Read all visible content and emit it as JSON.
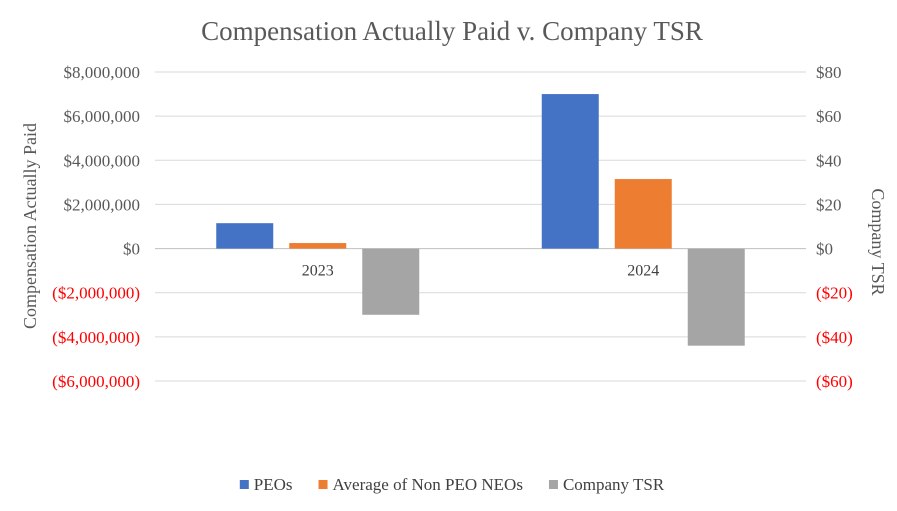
{
  "chart_data": {
    "type": "bar",
    "title": "Compensation Actually Paid v. Company TSR",
    "categories": [
      "2023",
      "2024"
    ],
    "series": [
      {
        "name": "PEOs",
        "axis": "left",
        "values": [
          1150000,
          7000000
        ],
        "color": "#4472C4"
      },
      {
        "name": "Average of Non PEO NEOs",
        "axis": "left",
        "values": [
          250000,
          3150000
        ],
        "color": "#ED7D31"
      },
      {
        "name": "Company TSR",
        "axis": "right",
        "values": [
          -30,
          -44
        ],
        "color": "#A5A5A5"
      }
    ],
    "ylabel": "Compensation Actually Paid",
    "y2label": "Company TSR",
    "ylim": [
      -6000000,
      8000000
    ],
    "y2lim": [
      -60,
      80
    ],
    "yticks": [
      {
        "value": 8000000,
        "label": "$8,000,000"
      },
      {
        "value": 6000000,
        "label": "$6,000,000"
      },
      {
        "value": 4000000,
        "label": "$4,000,000"
      },
      {
        "value": 2000000,
        "label": "$2,000,000"
      },
      {
        "value": 0,
        "label": "$0"
      },
      {
        "value": -2000000,
        "label": "($2,000,000)"
      },
      {
        "value": -4000000,
        "label": "($4,000,000)"
      },
      {
        "value": -6000000,
        "label": "($6,000,000)"
      }
    ],
    "y2ticks": [
      {
        "value": 80,
        "label": "$80"
      },
      {
        "value": 60,
        "label": "$60"
      },
      {
        "value": 40,
        "label": "$40"
      },
      {
        "value": 20,
        "label": "$20"
      },
      {
        "value": 0,
        "label": "$0"
      },
      {
        "value": -20,
        "label": "($20)"
      },
      {
        "value": -40,
        "label": "($40)"
      },
      {
        "value": -60,
        "label": "($60)"
      }
    ],
    "grid": true,
    "legend_position": "bottom",
    "positive_tick_color": "#595959",
    "negative_tick_color": "#FF0000"
  }
}
